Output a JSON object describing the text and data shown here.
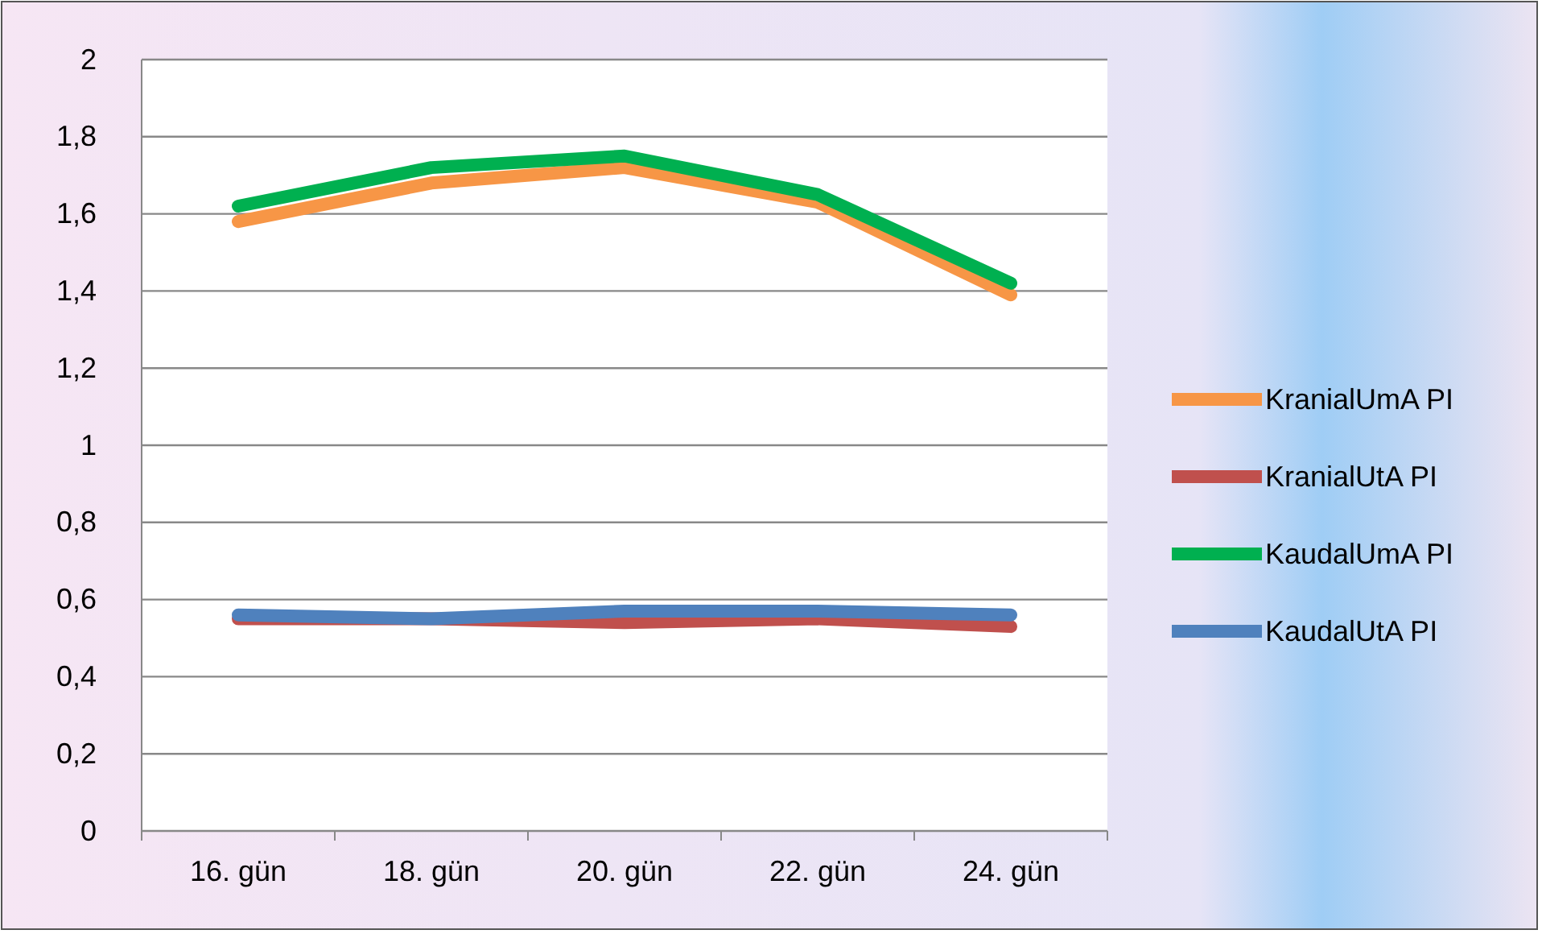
{
  "chart_data": {
    "type": "line",
    "categories": [
      "16. gün",
      "18. gün",
      "20. gün",
      "22. gün",
      "24. gün"
    ],
    "series": [
      {
        "name": "KranialUmA PI",
        "color": "#f79646",
        "values": [
          1.58,
          1.68,
          1.72,
          1.63,
          1.39
        ]
      },
      {
        "name": "KranialUtA PI",
        "color": "#c0504d",
        "values": [
          0.55,
          0.55,
          0.54,
          0.55,
          0.53
        ]
      },
      {
        "name": "KaudalUmA PI",
        "color": "#00b050",
        "values": [
          1.62,
          1.72,
          1.75,
          1.65,
          1.42
        ]
      },
      {
        "name": "KaudalUtA PI",
        "color": "#4f81bd",
        "values": [
          0.56,
          0.55,
          0.57,
          0.57,
          0.56
        ]
      }
    ],
    "ylim": [
      0,
      2
    ],
    "yticks": [
      0,
      {
        "value": 0.2,
        "label": "0,2"
      },
      {
        "value": 0.4,
        "label": "0,4"
      },
      {
        "value": 0.6,
        "label": "0,6"
      },
      {
        "value": 0.8,
        "label": "0,8"
      },
      1,
      {
        "value": 1.2,
        "label": "1,2"
      },
      {
        "value": 1.4,
        "label": "1,4"
      },
      {
        "value": 1.6,
        "label": "1,6"
      },
      {
        "value": 1.8,
        "label": "1,8"
      },
      2
    ],
    "grid": "y",
    "legend": "right",
    "marker": "none",
    "line_style": "solid"
  }
}
